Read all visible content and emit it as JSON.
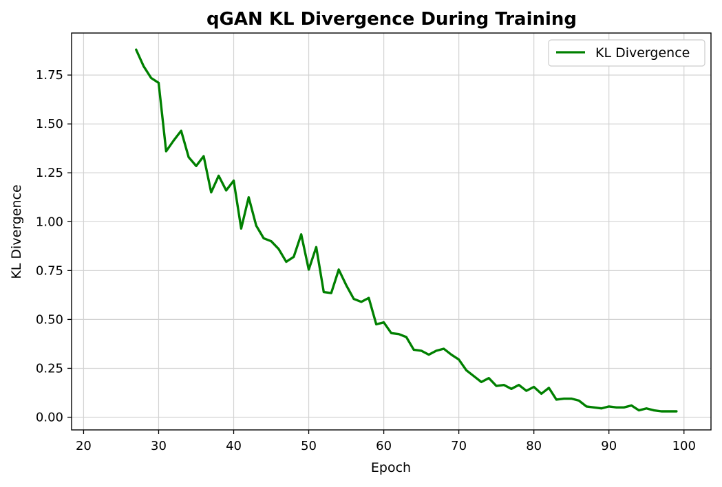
{
  "chart_data": {
    "type": "line",
    "title": "qGAN KL Divergence During Training",
    "xlabel": "Epoch",
    "ylabel": "KL Divergence",
    "xlim": [
      18.4,
      103.6
    ],
    "ylim": [
      -0.065,
      1.965
    ],
    "xticks": [
      20,
      30,
      40,
      50,
      60,
      70,
      80,
      90,
      100
    ],
    "yticks": [
      0.0,
      0.25,
      0.5,
      0.75,
      1.0,
      1.25,
      1.5,
      1.75
    ],
    "xtick_labels": [
      "20",
      "30",
      "40",
      "50",
      "60",
      "70",
      "80",
      "90",
      "100"
    ],
    "ytick_labels": [
      "0.00",
      "0.25",
      "0.50",
      "0.75",
      "1.00",
      "1.25",
      "1.50",
      "1.75"
    ],
    "grid": true,
    "legend_position": "top-right",
    "colors": {
      "line": "#008000",
      "grid": "#d3d3d3",
      "axes": "#000000"
    },
    "series": [
      {
        "name": "KL Divergence",
        "x": [
          27,
          28,
          29,
          30,
          31,
          32,
          33,
          34,
          35,
          36,
          37,
          38,
          39,
          40,
          41,
          42,
          43,
          44,
          45,
          46,
          47,
          48,
          49,
          50,
          51,
          52,
          53,
          54,
          55,
          56,
          57,
          58,
          59,
          60,
          61,
          62,
          63,
          64,
          65,
          66,
          67,
          68,
          69,
          70,
          71,
          72,
          73,
          74,
          75,
          76,
          77,
          78,
          79,
          80,
          81,
          82,
          83,
          84,
          85,
          86,
          87,
          88,
          89,
          90,
          91,
          92,
          93,
          94,
          95,
          96,
          97,
          98,
          99
        ],
        "y": [
          1.88,
          1.795,
          1.735,
          1.71,
          1.36,
          1.415,
          1.465,
          1.33,
          1.285,
          1.335,
          1.15,
          1.235,
          1.16,
          1.21,
          0.965,
          1.125,
          0.98,
          0.915,
          0.9,
          0.86,
          0.795,
          0.82,
          0.935,
          0.755,
          0.87,
          0.64,
          0.635,
          0.755,
          0.675,
          0.605,
          0.59,
          0.61,
          0.475,
          0.485,
          0.43,
          0.425,
          0.41,
          0.345,
          0.34,
          0.32,
          0.34,
          0.35,
          0.32,
          0.295,
          0.24,
          0.21,
          0.18,
          0.2,
          0.16,
          0.165,
          0.145,
          0.165,
          0.135,
          0.155,
          0.12,
          0.15,
          0.09,
          0.095,
          0.095,
          0.085,
          0.055,
          0.05,
          0.045,
          0.055,
          0.05,
          0.05,
          0.06,
          0.035,
          0.045,
          0.035,
          0.03,
          0.03,
          0.03
        ]
      }
    ]
  }
}
